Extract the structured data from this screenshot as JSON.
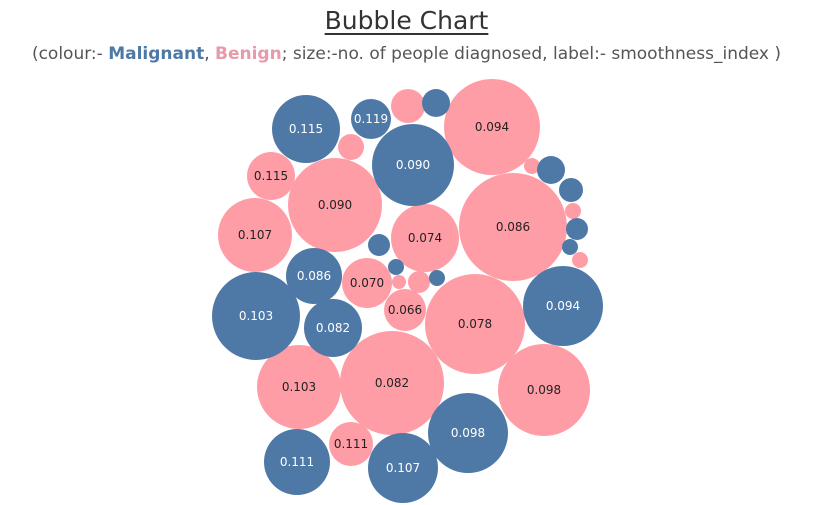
{
  "title": "Bubble Chart",
  "subtitle": {
    "prefix": "(colour:- ",
    "malignant": "Malignant",
    "sep": ", ",
    "benign": "Benign",
    "suffix": "; size:-no. of people diagnosed, label:- smoothness_index )"
  },
  "colors": {
    "Malignant": "#4e79a7",
    "Benign": "#ff9da7"
  },
  "chart_data": {
    "type": "bubble",
    "title": "Bubble Chart",
    "color_by": "diagnosis",
    "size_by": "no. of people diagnosed",
    "label_by": "smoothness_index",
    "bubbles": [
      {
        "label": "0.094",
        "diagnosis": "Benign",
        "size": 48
      },
      {
        "label": "0.086",
        "diagnosis": "Benign",
        "size": 54
      },
      {
        "label": "0.078",
        "diagnosis": "Benign",
        "size": 50
      },
      {
        "label": "0.082",
        "diagnosis": "Benign",
        "size": 52
      },
      {
        "label": "0.090",
        "diagnosis": "Benign",
        "size": 47
      },
      {
        "label": "0.098",
        "diagnosis": "Benign",
        "size": 46
      },
      {
        "label": "0.103",
        "diagnosis": "Benign",
        "size": 42
      },
      {
        "label": "0.107",
        "diagnosis": "Benign",
        "size": 37
      },
      {
        "label": "0.074",
        "diagnosis": "Benign",
        "size": 34
      },
      {
        "label": "0.070",
        "diagnosis": "Benign",
        "size": 25
      },
      {
        "label": "0.115",
        "diagnosis": "Benign",
        "size": 24
      },
      {
        "label": "0.111",
        "diagnosis": "Benign",
        "size": 22
      },
      {
        "label": "0.066",
        "diagnosis": "Benign",
        "size": 21
      },
      {
        "label": "",
        "diagnosis": "Benign",
        "size": 17
      },
      {
        "label": "",
        "diagnosis": "Benign",
        "size": 13
      },
      {
        "label": "",
        "diagnosis": "Benign",
        "size": 11
      },
      {
        "label": "",
        "diagnosis": "Benign",
        "size": 8
      },
      {
        "label": "",
        "diagnosis": "Benign",
        "size": 7
      },
      {
        "label": "",
        "diagnosis": "Benign",
        "size": 8
      },
      {
        "label": "",
        "diagnosis": "Benign",
        "size": 8
      },
      {
        "label": "0.103",
        "diagnosis": "Malignant",
        "size": 44
      },
      {
        "label": "0.094",
        "diagnosis": "Malignant",
        "size": 40
      },
      {
        "label": "0.098",
        "diagnosis": "Malignant",
        "size": 40
      },
      {
        "label": "0.090",
        "diagnosis": "Malignant",
        "size": 41
      },
      {
        "label": "0.107",
        "diagnosis": "Malignant",
        "size": 35
      },
      {
        "label": "0.111",
        "diagnosis": "Malignant",
        "size": 33
      },
      {
        "label": "0.115",
        "diagnosis": "Malignant",
        "size": 34
      },
      {
        "label": "0.082",
        "diagnosis": "Malignant",
        "size": 29
      },
      {
        "label": "0.086",
        "diagnosis": "Malignant",
        "size": 28
      },
      {
        "label": "0.119",
        "diagnosis": "Malignant",
        "size": 20
      },
      {
        "label": "",
        "diagnosis": "Malignant",
        "size": 14
      },
      {
        "label": "",
        "diagnosis": "Malignant",
        "size": 14
      },
      {
        "label": "",
        "diagnosis": "Malignant",
        "size": 12
      },
      {
        "label": "",
        "diagnosis": "Malignant",
        "size": 11
      },
      {
        "label": "",
        "diagnosis": "Malignant",
        "size": 11
      },
      {
        "label": "",
        "diagnosis": "Malignant",
        "size": 8
      },
      {
        "label": "",
        "diagnosis": "Malignant",
        "size": 8
      },
      {
        "label": "",
        "diagnosis": "Malignant",
        "size": 8
      }
    ]
  }
}
